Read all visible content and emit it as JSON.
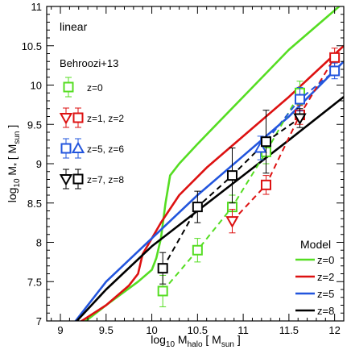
{
  "chart_data": {
    "type": "line",
    "annotation": "linear",
    "xlabel": {
      "base": "log",
      "base_sub": "10",
      "main": " M",
      "main_sub": "halo",
      "unit_pre": " [ M",
      "unit_sub": "sun",
      "unit_post": " ]"
    },
    "ylabel": {
      "base": "log",
      "base_sub": "10",
      "main": " M",
      "main_sub": "*",
      "unit_pre": " [ M",
      "unit_sub": "sun",
      "unit_post": " ]"
    },
    "xlim": [
      8.85,
      12.1
    ],
    "ylim": [
      7.0,
      11.0
    ],
    "xticks": [
      "9",
      "9.5",
      "10",
      "10.5",
      "11",
      "11.5",
      "12"
    ],
    "yticks": [
      "7",
      "7.5",
      "8",
      "8.5",
      "9",
      "9.5",
      "10",
      "10.5",
      "11"
    ],
    "data_legend_title": "Behroozi+13",
    "data_legend": [
      {
        "label": "z=0",
        "markers": [
          "square"
        ],
        "colors": [
          "#55dd22"
        ]
      },
      {
        "label": "z=1, z=2",
        "markers": [
          "triangle-down",
          "square"
        ],
        "colors": [
          "#dd1111",
          "#dd1111"
        ]
      },
      {
        "label": "z=5, z=6",
        "markers": [
          "square",
          "triangle-up"
        ],
        "colors": [
          "#2255dd",
          "#2255dd"
        ]
      },
      {
        "label": "z=7, z=8",
        "markers": [
          "triangle-down",
          "square"
        ],
        "colors": [
          "#000000",
          "#000000"
        ]
      }
    ],
    "model_legend_title": "Model",
    "series": [
      {
        "name": "z=0",
        "color": "#55dd22",
        "x": [
          9.0,
          9.5,
          9.85,
          10.0,
          10.05,
          10.1,
          10.15,
          10.2,
          10.3,
          10.5,
          11.0,
          11.5,
          12.1
        ],
        "y": [
          6.75,
          7.2,
          7.5,
          7.65,
          7.8,
          8.05,
          8.5,
          8.85,
          9.0,
          9.25,
          9.85,
          10.45,
          11.05
        ]
      },
      {
        "name": "z=2",
        "color": "#dd1111",
        "x": [
          9.1,
          9.5,
          9.75,
          9.85,
          9.9,
          10.0,
          10.1,
          10.3,
          10.6,
          11.0,
          11.5,
          12.1
        ],
        "y": [
          6.9,
          7.2,
          7.45,
          7.6,
          7.85,
          8.05,
          8.25,
          8.6,
          8.95,
          9.35,
          9.85,
          10.5
        ]
      },
      {
        "name": "z=5",
        "color": "#2255dd",
        "x": [
          9.1,
          9.5,
          10.0,
          10.5,
          11.0,
          11.5,
          12.1
        ],
        "y": [
          6.9,
          7.5,
          8.05,
          8.6,
          9.1,
          9.6,
          10.3
        ]
      },
      {
        "name": "z=8",
        "color": "#000000",
        "x": [
          9.1,
          9.5,
          10.0,
          10.5,
          11.0,
          11.5,
          12.1
        ],
        "y": [
          6.9,
          7.4,
          7.95,
          8.4,
          8.85,
          9.3,
          9.85
        ]
      }
    ],
    "observations": [
      {
        "name": "z=0",
        "color": "#55dd22",
        "marker": "square",
        "x": [
          10.12,
          10.5,
          10.88,
          11.25,
          11.62
        ],
        "y": [
          7.38,
          7.9,
          8.45,
          9.15,
          9.9
        ],
        "err": [
          0.2,
          0.15,
          0.15,
          0.15,
          0.15
        ]
      },
      {
        "name": "z=1",
        "color": "#dd1111",
        "marker": "triangle-down",
        "x": [
          10.88
        ],
        "y": [
          8.27
        ],
        "err": [
          0.15
        ]
      },
      {
        "name": "z=2",
        "color": "#dd1111",
        "marker": "square",
        "x": [
          11.25,
          11.62,
          12.0
        ],
        "y": [
          8.73,
          9.62,
          10.35
        ],
        "err": [
          0.12,
          0.12,
          0.12
        ]
      },
      {
        "name": "z=5",
        "color": "#2255dd",
        "marker": "square",
        "x": [
          11.62,
          12.0
        ],
        "y": [
          9.82,
          10.18
        ],
        "err": [
          0.15,
          0.1
        ]
      },
      {
        "name": "z=6",
        "color": "#2255dd",
        "marker": "triangle-up",
        "x": [
          11.19
        ],
        "y": [
          9.2
        ],
        "err": [
          0.15
        ]
      },
      {
        "name": "z=7",
        "color": "#000000",
        "marker": "triangle-down",
        "x": [
          11.62
        ],
        "y": [
          9.58
        ],
        "err": [
          0.12
        ]
      },
      {
        "name": "z=8",
        "color": "#000000",
        "marker": "square",
        "x": [
          10.12,
          10.5,
          10.88,
          11.25
        ],
        "y": [
          7.67,
          8.45,
          8.85,
          9.28
        ],
        "err": [
          0.2,
          0.2,
          0.35,
          0.4
        ]
      }
    ],
    "dashed_links": [
      {
        "color": "#55dd22",
        "x": [
          10.12,
          10.5,
          10.88,
          11.25,
          11.62
        ],
        "y": [
          7.38,
          7.9,
          8.45,
          9.15,
          9.9
        ]
      },
      {
        "color": "#dd1111",
        "x": [
          10.88,
          11.25,
          11.62,
          12.0
        ],
        "y": [
          8.27,
          8.73,
          9.62,
          10.35
        ]
      },
      {
        "color": "#2255dd",
        "x": [
          11.19,
          11.62,
          12.0
        ],
        "y": [
          9.2,
          9.82,
          10.18
        ]
      },
      {
        "color": "#000000",
        "x": [
          10.12,
          10.5,
          10.88,
          11.25,
          11.62
        ],
        "y": [
          7.67,
          8.45,
          8.85,
          9.28,
          9.58
        ]
      }
    ]
  }
}
